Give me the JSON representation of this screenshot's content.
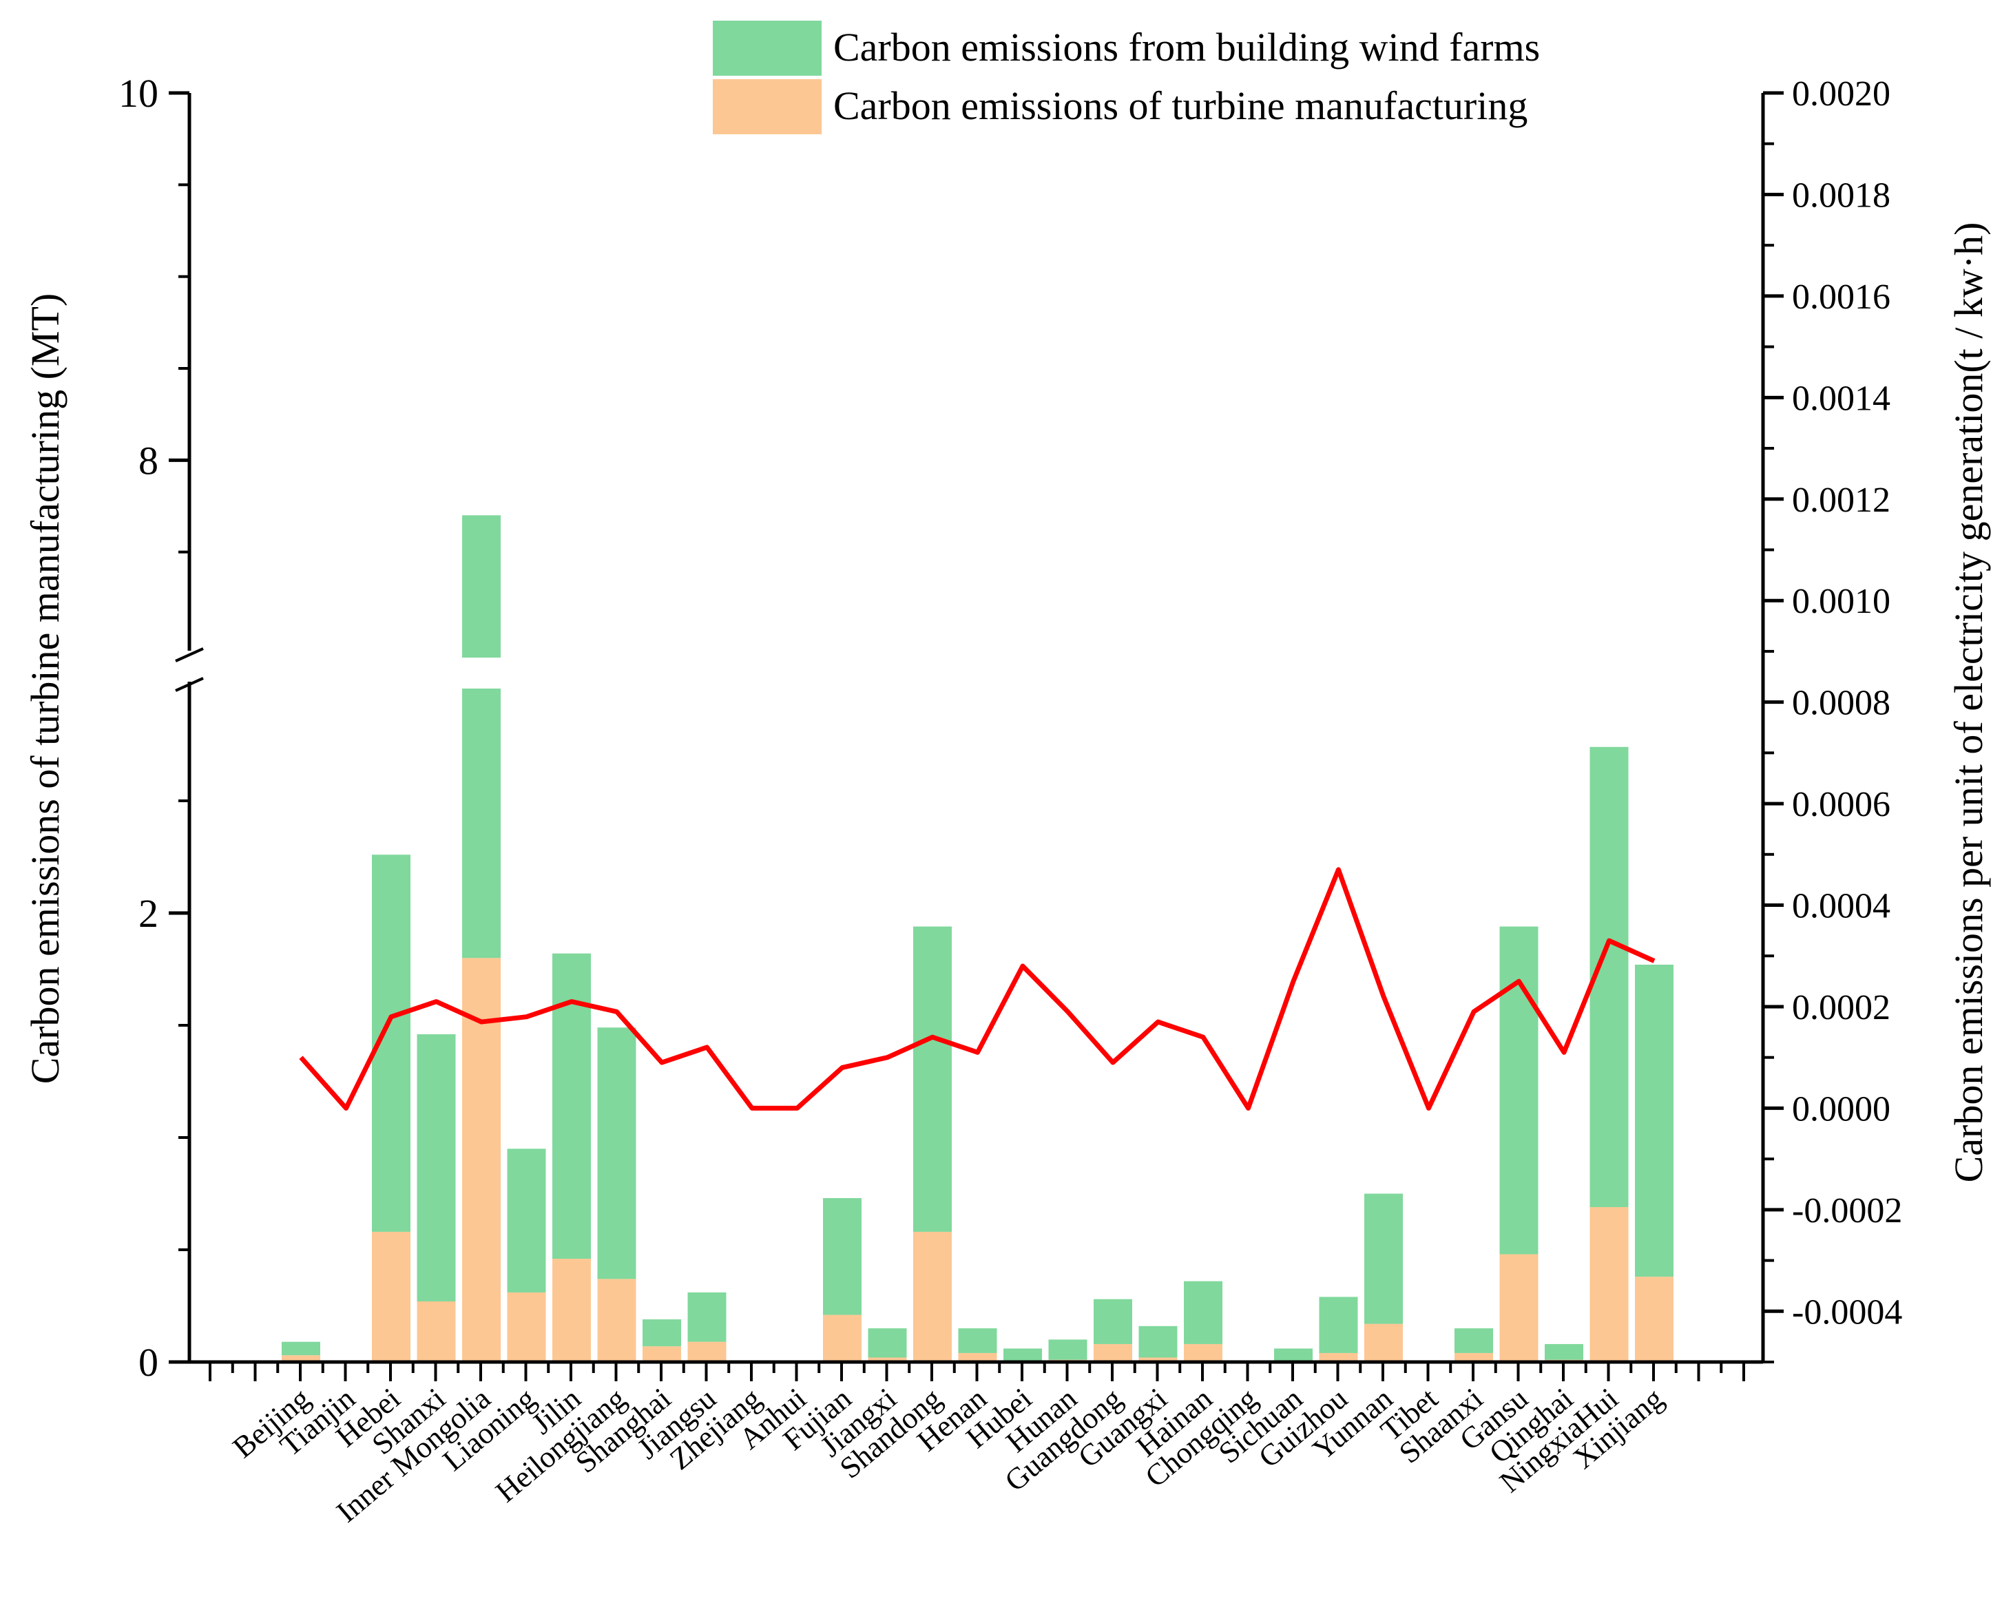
{
  "colors": {
    "building": "#80d89c",
    "turbine": "#fcc793",
    "line": "#ff0000",
    "axis": "#000000"
  },
  "chart_data": {
    "type": "bar",
    "stacked": true,
    "secondary_type": "line",
    "legend": {
      "position": "top-center",
      "entries": [
        "Carbon emissions from building wind farms",
        "Carbon emissions of turbine manufacturing"
      ]
    },
    "ylabel": "Carbon emissions of turbine manufacturing (MT)",
    "y2label": "Carbon emissions per unit of electricity generation(t / kw·h)",
    "xlabel": "",
    "y_axis_break": {
      "from": 3,
      "to": 7
    },
    "ylim": [
      0,
      10
    ],
    "ylim_lower": [
      0,
      3
    ],
    "ylim_upper": [
      7,
      10
    ],
    "yticks_lower": [
      0,
      2
    ],
    "ytick_labels_lower": [
      "0",
      "2"
    ],
    "yticks_upper": [
      8,
      10
    ],
    "ytick_labels_upper": [
      "8",
      "10"
    ],
    "y2lim": [
      -0.0005,
      0.002
    ],
    "y2ticks": [
      -0.0004,
      -0.0002,
      0,
      0.0002,
      0.0004,
      0.0006,
      0.0008,
      0.001,
      0.0012,
      0.0014,
      0.0016,
      0.0018,
      0.002
    ],
    "y2tick_labels": [
      "-0.0004",
      "-0.0002",
      "0.0000",
      "0.0002",
      "0.0004",
      "0.0006",
      "0.0008",
      "0.0010",
      "0.0012",
      "0.0014",
      "0.0016",
      "0.0018",
      "0.0020"
    ],
    "categories": [
      "Beijing",
      "Tianjin",
      "Hebei",
      "Shanxi",
      "Inner Mongolia",
      "Liaoning",
      "Jilin",
      "Heilongjiang",
      "Shanghai",
      "Jiangsu",
      "Zhejiang",
      "Anhui",
      "Fujian",
      "Jiangxi",
      "Shandong",
      "Henan",
      "Hubei",
      "Hunan",
      "Guangdong",
      "Guangxi",
      "Hainan",
      "Chongqing",
      "Sichuan",
      "Guizhou",
      "Yunnan",
      "Tibet",
      "Shaanxi",
      "Gansu",
      "Qinghai",
      "NingxiaHui",
      "Xinjiang"
    ],
    "series": [
      {
        "name": "Carbon emissions of turbine manufacturing",
        "axis": "left",
        "values": [
          0.03,
          0,
          0.58,
          0.27,
          1.8,
          0.31,
          0.46,
          0.37,
          0.07,
          0.09,
          0,
          0,
          0.21,
          0.02,
          0.58,
          0.04,
          0,
          0.01,
          0.08,
          0.02,
          0.08,
          0,
          0,
          0.04,
          0.17,
          0,
          0.04,
          0.48,
          0.01,
          0.69,
          0.38
        ]
      },
      {
        "name": "Carbon emissions from building wind farms",
        "axis": "left",
        "values": [
          0.06,
          0,
          1.68,
          1.19,
          5.9,
          0.64,
          1.36,
          1.12,
          0.12,
          0.22,
          0,
          0,
          0.52,
          0.13,
          1.36,
          0.11,
          0.06,
          0.09,
          0.2,
          0.14,
          0.28,
          0,
          0.06,
          0.25,
          0.58,
          0,
          0.11,
          1.46,
          0.07,
          2.05,
          1.39
        ]
      },
      {
        "name": "Carbon emissions per unit of electricity generation",
        "axis": "right",
        "type": "line",
        "values": [
          0.0001,
          0,
          0.00018,
          0.00021,
          0.00017,
          0.00018,
          0.00021,
          0.00019,
          9e-05,
          0.00012,
          0,
          0,
          8e-05,
          0.0001,
          0.00014,
          0.00011,
          0.00028,
          0.00019,
          9e-05,
          0.00017,
          0.00014,
          0,
          0.00025,
          0.00047,
          0.00022,
          0,
          0.00019,
          0.00025,
          0.00011,
          0.00033,
          0.00029
        ]
      }
    ]
  }
}
